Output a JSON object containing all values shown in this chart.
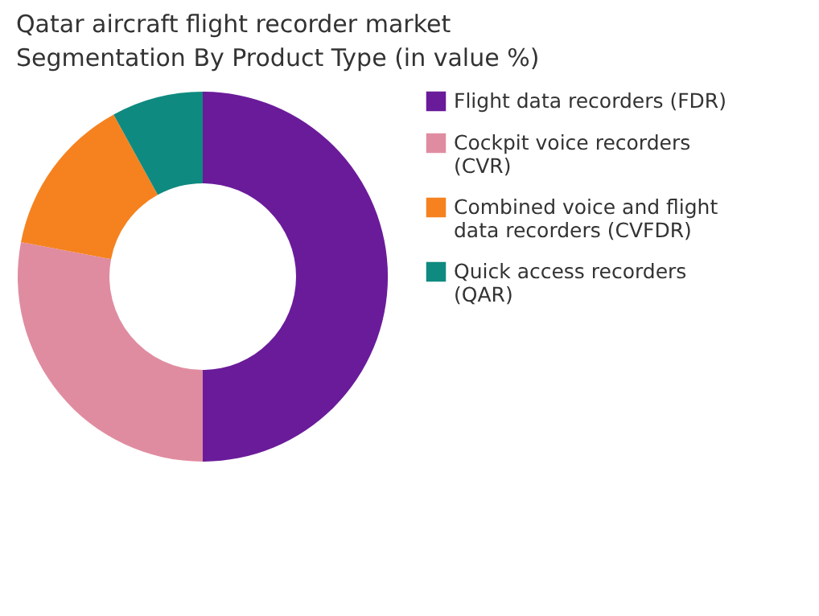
{
  "chart_data": {
    "type": "donut",
    "title": "Qatar aircraft flight recorder market\nSegmentation By Product Type (in value %)",
    "categories": [
      "Flight data recorders (FDR)",
      "Cockpit voice recorders (CVR)",
      "Combined voice and flight data recorders (CVFDR)",
      "Quick access recorders (QAR)"
    ],
    "values": [
      50,
      28,
      14,
      8
    ],
    "colors": [
      "#6a1b9a",
      "#e08ca0",
      "#f5821f",
      "#0f8a80"
    ],
    "legend": "right"
  }
}
